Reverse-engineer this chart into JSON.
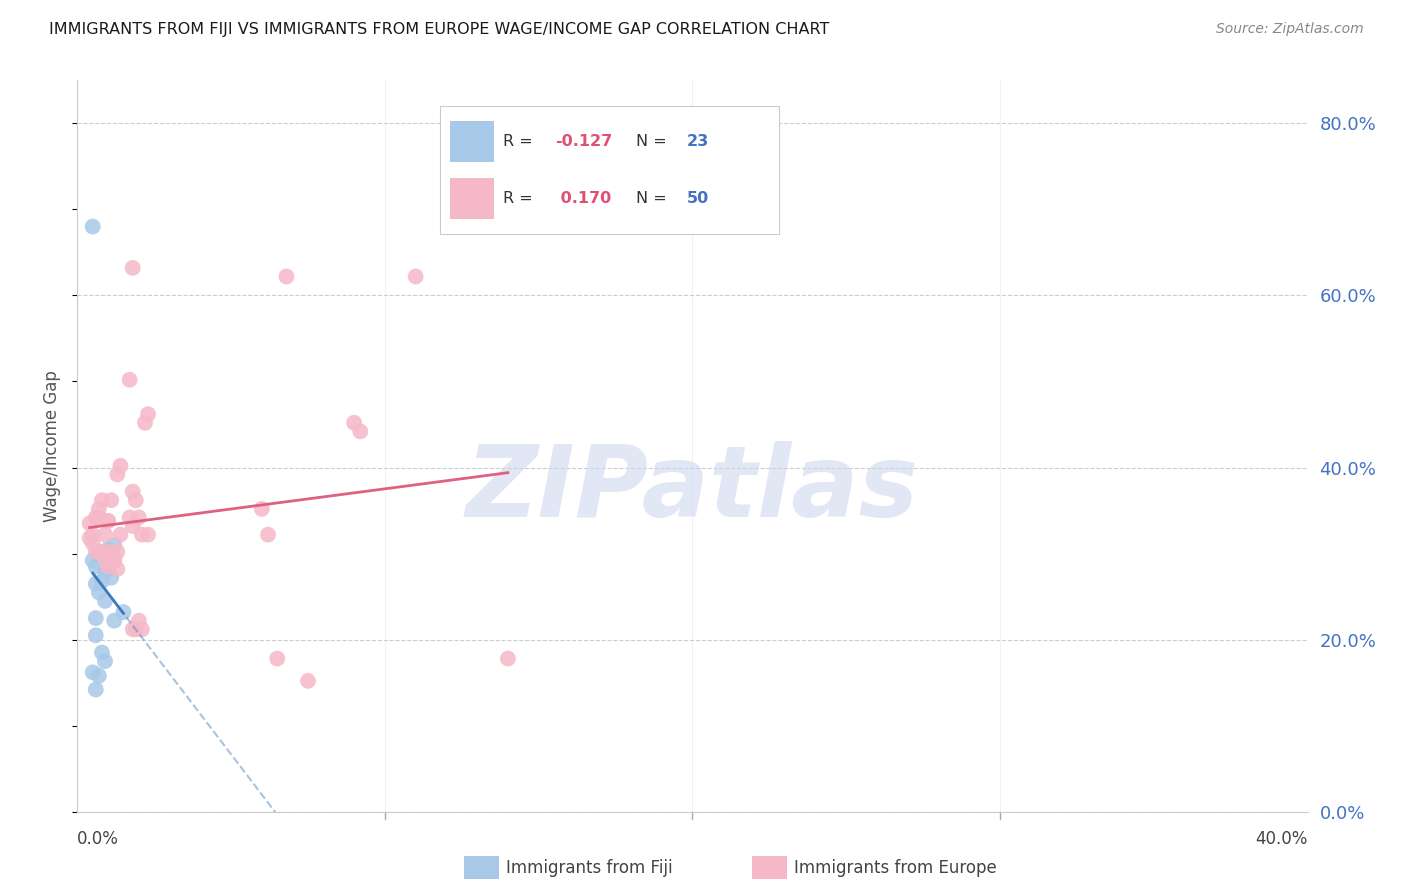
{
  "title": "IMMIGRANTS FROM FIJI VS IMMIGRANTS FROM EUROPE WAGE/INCOME GAP CORRELATION CHART",
  "source": "Source: ZipAtlas.com",
  "ylabel": "Wage/Income Gap",
  "fiji_R": -0.127,
  "fiji_N": 23,
  "europe_R": 0.17,
  "europe_N": 50,
  "fiji_color": "#a8c8e8",
  "europe_color": "#f5b8c8",
  "fiji_line_color": "#3a7abf",
  "europe_line_color": "#e06080",
  "fiji_scatter": [
    [
      0.005,
      0.68
    ],
    [
      0.01,
      0.305
    ],
    [
      0.008,
      0.295
    ],
    [
      0.012,
      0.31
    ],
    [
      0.006,
      0.285
    ],
    [
      0.007,
      0.3
    ],
    [
      0.009,
      0.28
    ],
    [
      0.011,
      0.272
    ],
    [
      0.006,
      0.265
    ],
    [
      0.008,
      0.268
    ],
    [
      0.005,
      0.292
    ],
    [
      0.01,
      0.282
    ],
    [
      0.007,
      0.255
    ],
    [
      0.009,
      0.245
    ],
    [
      0.006,
      0.225
    ],
    [
      0.012,
      0.222
    ],
    [
      0.015,
      0.232
    ],
    [
      0.006,
      0.205
    ],
    [
      0.008,
      0.185
    ],
    [
      0.009,
      0.175
    ],
    [
      0.005,
      0.162
    ],
    [
      0.007,
      0.158
    ],
    [
      0.006,
      0.142
    ]
  ],
  "europe_scatter": [
    [
      0.004,
      0.335
    ],
    [
      0.005,
      0.322
    ],
    [
      0.006,
      0.342
    ],
    [
      0.004,
      0.318
    ],
    [
      0.005,
      0.312
    ],
    [
      0.006,
      0.302
    ],
    [
      0.007,
      0.352
    ],
    [
      0.008,
      0.362
    ],
    [
      0.007,
      0.342
    ],
    [
      0.008,
      0.302
    ],
    [
      0.009,
      0.322
    ],
    [
      0.008,
      0.302
    ],
    [
      0.009,
      0.292
    ],
    [
      0.01,
      0.338
    ],
    [
      0.011,
      0.362
    ],
    [
      0.01,
      0.338
    ],
    [
      0.011,
      0.302
    ],
    [
      0.012,
      0.292
    ],
    [
      0.01,
      0.285
    ],
    [
      0.011,
      0.292
    ],
    [
      0.014,
      0.402
    ],
    [
      0.013,
      0.392
    ],
    [
      0.014,
      0.322
    ],
    [
      0.013,
      0.302
    ],
    [
      0.012,
      0.292
    ],
    [
      0.013,
      0.282
    ],
    [
      0.018,
      0.632
    ],
    [
      0.017,
      0.502
    ],
    [
      0.018,
      0.372
    ],
    [
      0.019,
      0.362
    ],
    [
      0.017,
      0.342
    ],
    [
      0.018,
      0.332
    ],
    [
      0.019,
      0.212
    ],
    [
      0.018,
      0.212
    ],
    [
      0.02,
      0.342
    ],
    [
      0.021,
      0.322
    ],
    [
      0.02,
      0.222
    ],
    [
      0.021,
      0.212
    ],
    [
      0.023,
      0.462
    ],
    [
      0.022,
      0.452
    ],
    [
      0.023,
      0.322
    ],
    [
      0.06,
      0.352
    ],
    [
      0.062,
      0.322
    ],
    [
      0.065,
      0.178
    ],
    [
      0.068,
      0.622
    ],
    [
      0.075,
      0.152
    ],
    [
      0.09,
      0.452
    ],
    [
      0.092,
      0.442
    ],
    [
      0.11,
      0.622
    ],
    [
      0.14,
      0.178
    ]
  ],
  "xlim": [
    0.0,
    0.4
  ],
  "ylim": [
    0.0,
    0.85
  ],
  "ytick_vals": [
    0.0,
    0.2,
    0.4,
    0.6,
    0.8
  ],
  "xtick_vals": [
    0.0,
    0.1,
    0.2,
    0.3,
    0.4
  ],
  "background_color": "#ffffff",
  "watermark_text": "ZIPatlas",
  "watermark_color": "#cdd8ee",
  "grid_color": "#cccccc"
}
